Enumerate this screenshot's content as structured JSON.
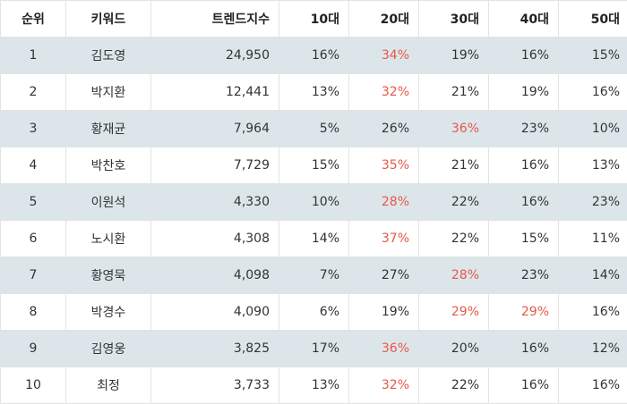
{
  "table": {
    "headers": [
      "순위",
      "키워드",
      "트렌드지수",
      "10대",
      "20대",
      "30대",
      "40대",
      "50대"
    ],
    "highlight_color": "#e8574a",
    "rows": [
      {
        "rank": "1",
        "keyword": "김도영",
        "trend": "24,950",
        "ages": [
          "16%",
          "34%",
          "19%",
          "16%",
          "15%"
        ],
        "highlight": [
          1
        ]
      },
      {
        "rank": "2",
        "keyword": "박지환",
        "trend": "12,441",
        "ages": [
          "13%",
          "32%",
          "21%",
          "19%",
          "16%"
        ],
        "highlight": [
          1
        ]
      },
      {
        "rank": "3",
        "keyword": "황재균",
        "trend": "7,964",
        "ages": [
          "5%",
          "26%",
          "36%",
          "23%",
          "10%"
        ],
        "highlight": [
          2
        ]
      },
      {
        "rank": "4",
        "keyword": "박찬호",
        "trend": "7,729",
        "ages": [
          "15%",
          "35%",
          "21%",
          "16%",
          "13%"
        ],
        "highlight": [
          1
        ]
      },
      {
        "rank": "5",
        "keyword": "이원석",
        "trend": "4,330",
        "ages": [
          "10%",
          "28%",
          "22%",
          "16%",
          "23%"
        ],
        "highlight": [
          1
        ]
      },
      {
        "rank": "6",
        "keyword": "노시환",
        "trend": "4,308",
        "ages": [
          "14%",
          "37%",
          "22%",
          "15%",
          "11%"
        ],
        "highlight": [
          1
        ]
      },
      {
        "rank": "7",
        "keyword": "황영묵",
        "trend": "4,098",
        "ages": [
          "7%",
          "27%",
          "28%",
          "23%",
          "14%"
        ],
        "highlight": [
          2
        ]
      },
      {
        "rank": "8",
        "keyword": "박경수",
        "trend": "4,090",
        "ages": [
          "6%",
          "19%",
          "29%",
          "29%",
          "16%"
        ],
        "highlight": [
          2,
          3
        ]
      },
      {
        "rank": "9",
        "keyword": "김영웅",
        "trend": "3,825",
        "ages": [
          "17%",
          "36%",
          "20%",
          "16%",
          "12%"
        ],
        "highlight": [
          1
        ]
      },
      {
        "rank": "10",
        "keyword": "최정",
        "trend": "3,733",
        "ages": [
          "13%",
          "32%",
          "22%",
          "16%",
          "16%"
        ],
        "highlight": [
          1
        ]
      }
    ]
  }
}
